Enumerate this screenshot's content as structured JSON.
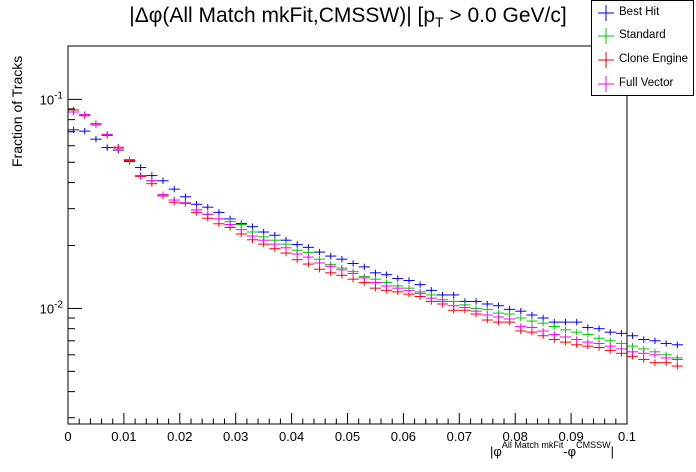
{
  "chart_data": {
    "type": "scatter",
    "title_parts": [
      "|Δφ(All Match mkFit,CMSSW)| [p",
      "T",
      " > 0.0 GeV/c]"
    ],
    "ylabel": "Fraction of Tracks",
    "xlabel_parts": [
      "|φ",
      "All Match mkFit",
      "-φ",
      "CMSSW",
      "|"
    ],
    "xlim": [
      0,
      0.1
    ],
    "ylim": [
      0.0028,
      0.18
    ],
    "yscale": "log",
    "bin_width": 0.002,
    "x_ticks": [
      0,
      0.01,
      0.02,
      0.03,
      0.04,
      0.05,
      0.06,
      0.07,
      0.08,
      0.09,
      0.1
    ],
    "x_tick_labels": [
      "0",
      "0.01",
      "0.02",
      "0.03",
      "0.04",
      "0.05",
      "0.06",
      "0.07",
      "0.08",
      "0.09",
      "0.1"
    ],
    "y_major_ticks": [
      0.01,
      0.1
    ],
    "y_tick_labels": [
      {
        "base": "10",
        "exp": "-2"
      },
      {
        "base": "10",
        "exp": "-1"
      }
    ],
    "legend_position": "top-right",
    "series": [
      {
        "name": "Best Hit",
        "color": "#0000ff",
        "values": [
          0.0715,
          0.0705,
          0.0645,
          0.0588,
          0.0572,
          0.0505,
          0.0472,
          0.0432,
          0.0408,
          0.0372,
          0.0342,
          0.0315,
          0.0305,
          0.0288,
          0.0268,
          0.0255,
          0.0246,
          0.0232,
          0.0224,
          0.0212,
          0.0202,
          0.0196,
          0.0186,
          0.0178,
          0.0172,
          0.0164,
          0.0158,
          0.0148,
          0.0145,
          0.0139,
          0.0136,
          0.013,
          0.0122,
          0.0116,
          0.0116,
          0.0108,
          0.0108,
          0.0105,
          0.0103,
          0.0099,
          0.0097,
          0.0093,
          0.009,
          0.0086,
          0.0086,
          0.0086,
          0.0081,
          0.008,
          0.0077,
          0.0076,
          0.0074,
          0.0071,
          0.007,
          0.0068,
          0.0067
        ]
      },
      {
        "name": "Standard",
        "color": "#00cc00",
        "values": [
          0.087,
          0.0845,
          0.0755,
          0.068,
          0.059,
          0.0515,
          0.0432,
          0.0408,
          0.035,
          0.033,
          0.032,
          0.0296,
          0.0282,
          0.0268,
          0.026,
          0.0252,
          0.0232,
          0.022,
          0.0212,
          0.0203,
          0.019,
          0.0185,
          0.0172,
          0.0162,
          0.0156,
          0.015,
          0.0142,
          0.0138,
          0.0133,
          0.0128,
          0.0125,
          0.012,
          0.0116,
          0.011,
          0.0108,
          0.0104,
          0.01,
          0.0099,
          0.0095,
          0.0094,
          0.009,
          0.0087,
          0.0085,
          0.0082,
          0.0079,
          0.0077,
          0.0075,
          0.0072,
          0.007,
          0.0068,
          0.0066,
          0.0064,
          0.0062,
          0.006,
          0.0058
        ]
      },
      {
        "name": "Clone Engine",
        "color": "#ff0000",
        "values": [
          0.089,
          0.0835,
          0.0765,
          0.0672,
          0.0585,
          0.051,
          0.0428,
          0.0395,
          0.0345,
          0.0322,
          0.0318,
          0.0288,
          0.027,
          0.0254,
          0.0244,
          0.0227,
          0.0213,
          0.0203,
          0.0193,
          0.0184,
          0.0171,
          0.0163,
          0.0154,
          0.0148,
          0.0144,
          0.0138,
          0.0133,
          0.0125,
          0.0122,
          0.012,
          0.0117,
          0.0114,
          0.0108,
          0.0105,
          0.0098,
          0.0098,
          0.0094,
          0.0088,
          0.0086,
          0.0086,
          0.0078,
          0.0077,
          0.0074,
          0.0071,
          0.0069,
          0.0067,
          0.0066,
          0.0065,
          0.0063,
          0.0061,
          0.0059,
          0.0057,
          0.0055,
          0.0055,
          0.0053
        ]
      },
      {
        "name": "Full Vector",
        "color": "#ff00ff",
        "values": [
          0.087,
          0.0845,
          0.0755,
          0.068,
          0.059,
          0.0515,
          0.0432,
          0.0408,
          0.035,
          0.033,
          0.032,
          0.0296,
          0.0282,
          0.0268,
          0.0252,
          0.0238,
          0.0222,
          0.0212,
          0.0203,
          0.0195,
          0.0182,
          0.0176,
          0.0165,
          0.0159,
          0.0153,
          0.0147,
          0.014,
          0.0133,
          0.0128,
          0.0125,
          0.0122,
          0.0118,
          0.0112,
          0.0108,
          0.0103,
          0.0101,
          0.0097,
          0.0093,
          0.0091,
          0.0089,
          0.0082,
          0.0081,
          0.0078,
          0.0075,
          0.0073,
          0.0071,
          0.0069,
          0.0068,
          0.0066,
          0.0064,
          0.0062,
          0.0061,
          0.006,
          0.0058,
          0.0057
        ]
      }
    ]
  }
}
